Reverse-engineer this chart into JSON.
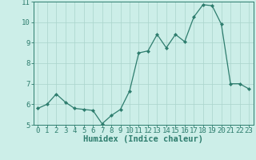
{
  "xlabel": "Humidex (Indice chaleur)",
  "x": [
    0,
    1,
    2,
    3,
    4,
    5,
    6,
    7,
    8,
    9,
    10,
    11,
    12,
    13,
    14,
    15,
    16,
    17,
    18,
    19,
    20,
    21,
    22,
    23
  ],
  "y": [
    5.8,
    6.0,
    6.5,
    6.1,
    5.8,
    5.75,
    5.7,
    5.05,
    5.45,
    5.75,
    6.65,
    8.5,
    8.6,
    9.4,
    8.75,
    9.4,
    9.05,
    10.25,
    10.85,
    10.8,
    9.9,
    7.0,
    7.0,
    6.75
  ],
  "line_color": "#2e7d6e",
  "marker": "D",
  "marker_size": 2.0,
  "bg_color": "#cceee8",
  "grid_color": "#aad4cc",
  "tick_color": "#2e7d6e",
  "label_color": "#2e7d6e",
  "ylim": [
    5,
    11
  ],
  "yticks": [
    5,
    6,
    7,
    8,
    9,
    10,
    11
  ],
  "xlim": [
    -0.5,
    23.5
  ],
  "xticks": [
    0,
    1,
    2,
    3,
    4,
    5,
    6,
    7,
    8,
    9,
    10,
    11,
    12,
    13,
    14,
    15,
    16,
    17,
    18,
    19,
    20,
    21,
    22,
    23
  ],
  "xlabel_fontsize": 7.5,
  "tick_fontsize": 6.5
}
